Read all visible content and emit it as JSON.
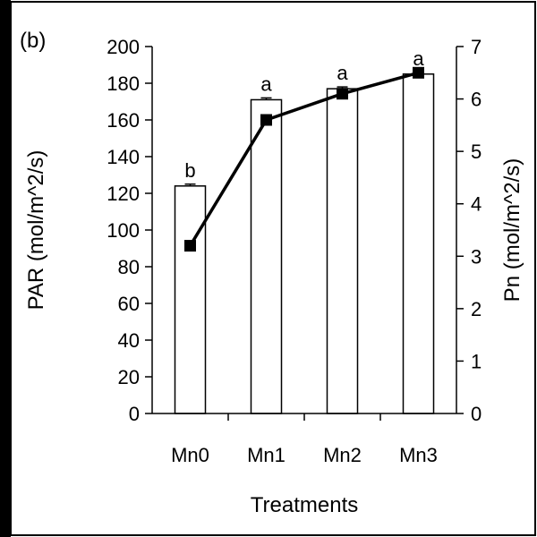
{
  "panel_label": "(b)",
  "chart_data": {
    "type": "bar",
    "categories": [
      "Mn0",
      "Mn1",
      "Mn2",
      "Mn3"
    ],
    "xlabel": "Treatments",
    "ylabel": "PAR (mol/m^2/s)",
    "y2label": "Pn (mol/m^2/s)",
    "ylim": [
      0,
      200
    ],
    "yticks": [
      0,
      20,
      40,
      60,
      80,
      100,
      120,
      140,
      160,
      180,
      200
    ],
    "y2lim": [
      0,
      7
    ],
    "y2ticks": [
      0,
      1,
      2,
      3,
      4,
      5,
      6,
      7
    ],
    "grid": false,
    "legend": "none",
    "series": [
      {
        "type": "bar",
        "axis": "left",
        "values": [
          124,
          171,
          177,
          185
        ],
        "error": [
          1,
          1,
          1,
          1
        ],
        "significance": [
          "b",
          "a",
          "a",
          "a"
        ],
        "color": "#ffffff"
      },
      {
        "type": "line",
        "axis": "right",
        "marker": "square",
        "values": [
          3.2,
          5.6,
          6.1,
          6.5
        ],
        "color": "#000000"
      }
    ]
  },
  "colors": {
    "frame": "#000000",
    "bar_fill": "#ffffff",
    "line": "#000000"
  }
}
